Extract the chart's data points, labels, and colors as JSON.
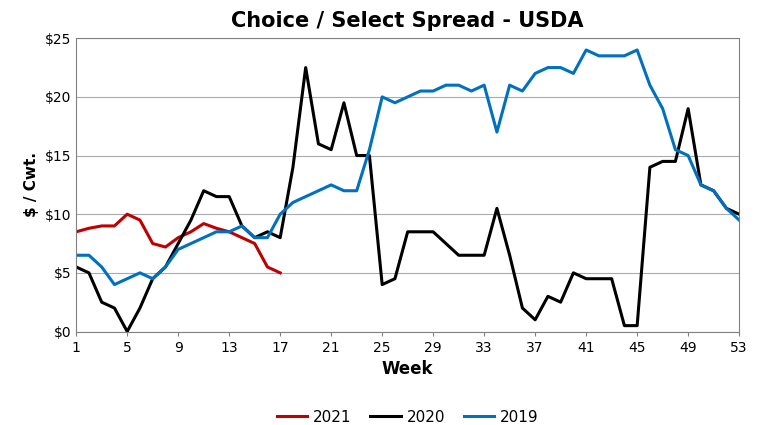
{
  "title": "Choice / Select Spread - USDA",
  "xlabel": "Week",
  "ylabel": "$ / Cwt.",
  "xlim": [
    1,
    53
  ],
  "ylim": [
    0,
    25
  ],
  "yticks": [
    0,
    5,
    10,
    15,
    20,
    25
  ],
  "xticks": [
    1,
    5,
    9,
    13,
    17,
    21,
    25,
    29,
    33,
    37,
    41,
    45,
    49,
    53
  ],
  "series": {
    "2021": {
      "color": "#C00000",
      "linewidth": 2.2,
      "data": {
        "weeks": [
          1,
          2,
          3,
          4,
          5,
          6,
          7,
          8,
          9,
          10,
          11,
          12,
          13,
          14,
          15,
          16,
          17
        ],
        "values": [
          8.5,
          8.8,
          9.0,
          9.0,
          10.0,
          9.5,
          7.5,
          7.2,
          8.0,
          8.5,
          9.2,
          8.8,
          8.5,
          8.0,
          7.5,
          5.5,
          5.0
        ]
      }
    },
    "2020": {
      "color": "#000000",
      "linewidth": 2.2,
      "data": {
        "weeks": [
          1,
          2,
          3,
          4,
          5,
          6,
          7,
          8,
          9,
          10,
          11,
          12,
          13,
          14,
          15,
          16,
          17,
          18,
          19,
          20,
          21,
          22,
          23,
          24,
          25,
          26,
          27,
          28,
          29,
          30,
          31,
          32,
          33,
          34,
          35,
          36,
          37,
          38,
          39,
          40,
          41,
          42,
          43,
          44,
          45,
          46,
          47,
          48,
          49,
          50,
          51,
          52,
          53
        ],
        "values": [
          5.5,
          5.0,
          2.5,
          2.0,
          0.0,
          2.0,
          4.5,
          5.5,
          7.5,
          9.5,
          12.0,
          11.5,
          11.5,
          9.0,
          8.0,
          8.5,
          8.0,
          14.0,
          22.5,
          16.0,
          15.5,
          19.5,
          15.0,
          15.0,
          4.0,
          4.5,
          8.5,
          8.5,
          8.5,
          7.5,
          6.5,
          6.5,
          6.5,
          10.5,
          6.5,
          2.0,
          1.0,
          3.0,
          2.5,
          5.0,
          4.5,
          4.5,
          4.5,
          0.5,
          0.5,
          14.0,
          14.5,
          14.5,
          19.0,
          12.5,
          12.0,
          10.5,
          10.0
        ]
      }
    },
    "2019": {
      "color": "#0070C0",
      "linewidth": 2.2,
      "data": {
        "weeks": [
          1,
          2,
          3,
          4,
          5,
          6,
          7,
          8,
          9,
          10,
          11,
          12,
          13,
          14,
          15,
          16,
          17,
          18,
          19,
          20,
          21,
          22,
          23,
          24,
          25,
          26,
          27,
          28,
          29,
          30,
          31,
          32,
          33,
          34,
          35,
          36,
          37,
          38,
          39,
          40,
          41,
          42,
          43,
          44,
          45,
          46,
          47,
          48,
          49,
          50,
          51,
          52,
          53
        ],
        "values": [
          6.5,
          6.5,
          5.5,
          4.0,
          4.5,
          5.0,
          4.5,
          5.5,
          7.0,
          7.5,
          8.0,
          8.5,
          8.5,
          9.0,
          8.0,
          8.0,
          10.0,
          11.0,
          11.5,
          12.0,
          12.5,
          12.0,
          12.0,
          15.5,
          20.0,
          19.5,
          20.0,
          20.5,
          20.5,
          21.0,
          21.0,
          20.5,
          21.0,
          17.0,
          21.0,
          20.5,
          22.0,
          22.5,
          22.5,
          22.0,
          24.0,
          23.5,
          23.5,
          23.5,
          24.0,
          21.0,
          19.0,
          15.5,
          15.0,
          12.5,
          12.0,
          10.5,
          9.5
        ]
      }
    }
  },
  "legend_order": [
    "2021",
    "2020",
    "2019"
  ],
  "background_color": "#FFFFFF",
  "grid_color": "#AAAAAA"
}
